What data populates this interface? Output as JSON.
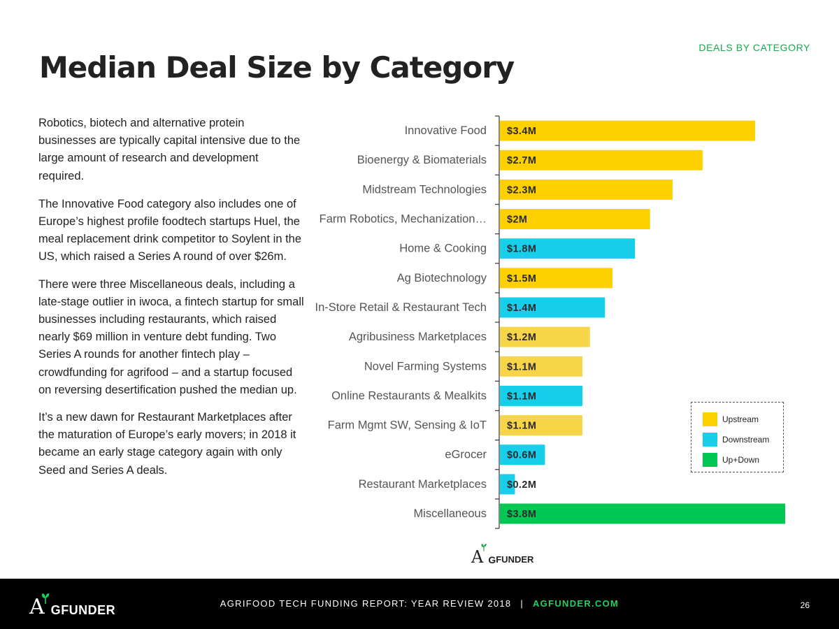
{
  "section_tag": "DEALS BY CATEGORY",
  "title": "Median Deal Size by Category",
  "body": [
    "Robotics, biotech and alternative protein businesses are typically capital intensive due to the large amount of research and development required.",
    "The Innovative Food category also includes one of Europe’s highest profile foodtech startups Huel, the meal replacement drink competitor to Soylent in the US, which raised a Series A round of over $26m.",
    "There were three Miscellaneous deals, including a late-stage outlier in iwoca, a fintech startup for small businesses including restaurants, which raised nearly $69 million in venture debt funding. Two Series A rounds for another fintech play – crowdfunding for agrifood – and a startup focused on reversing desertification pushed the median up.",
    "It’s a new dawn for Restaurant Marketplaces after the maturation of Europe’s early movers; in 2018 it became an early stage category again with only Seed and Series A deals."
  ],
  "chart_data": {
    "type": "bar",
    "orientation": "horizontal",
    "title": "",
    "xlabel": "",
    "ylabel": "",
    "xlim": [
      0,
      3.8
    ],
    "categories": [
      "Innovative Food",
      "Bioenergy & Biomaterials",
      "Midstream Technologies",
      "Farm Robotics, Mechanization…",
      "Home & Cooking",
      "Ag Biotechnology",
      "In-Store Retail & Restaurant Tech",
      "Agribusiness Marketplaces",
      "Novel Farming Systems",
      "Online Restaurants & Mealkits",
      "Farm Mgmt SW, Sensing & IoT",
      "eGrocer",
      "Restaurant Marketplaces",
      "Miscellaneous"
    ],
    "values": [
      3.4,
      2.7,
      2.3,
      2.0,
      1.8,
      1.5,
      1.4,
      1.2,
      1.1,
      1.1,
      1.1,
      0.6,
      0.2,
      3.8
    ],
    "labels": [
      "$3.4M",
      "$2.7M",
      "$2.3M",
      "$2M",
      "$1.8M",
      "$1.5M",
      "$1.4M",
      "$1.2M",
      "$1.1M",
      "$1.1M",
      "$1.1M",
      "$0.6M",
      "$0.2M",
      "$3.8M"
    ],
    "groups": [
      "Upstream",
      "Upstream",
      "Upstream",
      "Upstream",
      "Downstream",
      "Upstream",
      "Downstream",
      "Upstream",
      "Upstream",
      "Downstream",
      "Upstream",
      "Downstream",
      "Downstream",
      "Up+Down"
    ],
    "legend": [
      {
        "name": "Upstream",
        "color": "#ffd000"
      },
      {
        "name": "Downstream",
        "color": "#17cfea"
      },
      {
        "name": "Up+Down",
        "color": "#00c853"
      }
    ],
    "legend_position": "bottom-right"
  },
  "colors": {
    "Upstream": "#ffd000",
    "Upstream_light": "#f8d548",
    "Downstream": "#17cfea",
    "Up+Down": "#00c853",
    "accent": "#1aa64b"
  },
  "logo": {
    "initial": "A",
    "rest_small": "G",
    "rest": "FUNDER"
  },
  "footer": {
    "report": "AGRIFOOD TECH FUNDING REPORT: YEAR REVIEW 2018",
    "separator": "|",
    "site": "AGFUNDER.COM",
    "page_number": "26"
  }
}
